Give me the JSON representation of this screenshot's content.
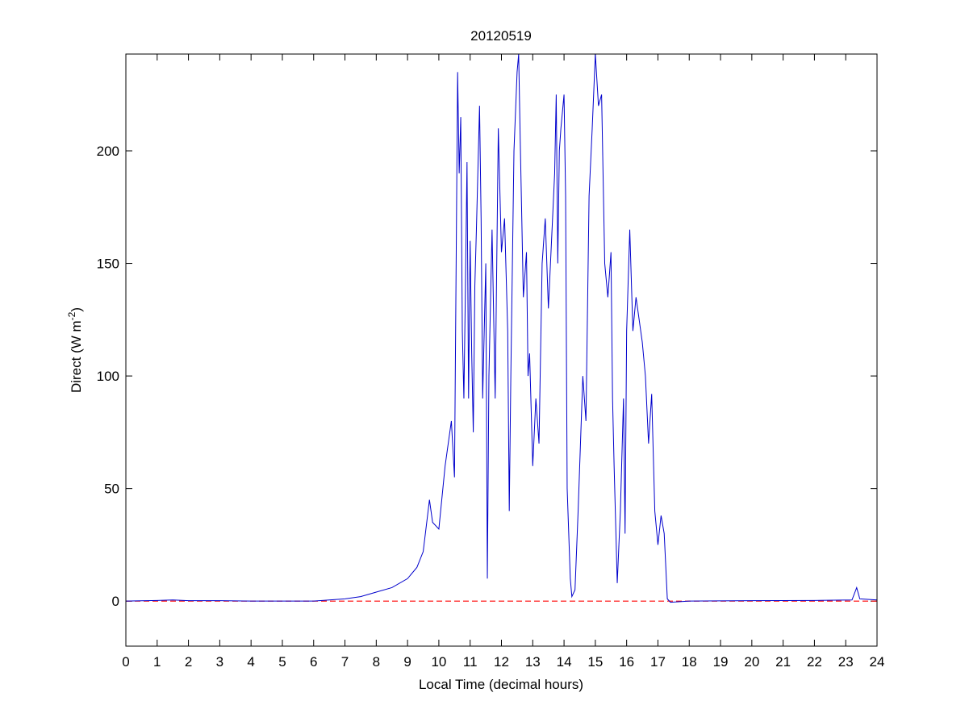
{
  "chart_data": {
    "type": "line",
    "title": "20120519",
    "xlabel": "Local Time (decimal hours)",
    "ylabel": [
      "Direct (W m",
      "-2",
      ")"
    ],
    "xlim": [
      0,
      24
    ],
    "ylim": [
      -20,
      243
    ],
    "xticks": [
      0,
      1,
      2,
      3,
      4,
      5,
      6,
      7,
      8,
      9,
      10,
      11,
      12,
      13,
      14,
      15,
      16,
      17,
      18,
      19,
      20,
      21,
      22,
      23,
      24
    ],
    "yticks": [
      0,
      50,
      100,
      150,
      200
    ],
    "reference_line": {
      "value": 0,
      "color": "#ff0000",
      "style": "dashed"
    },
    "series": [
      {
        "color": "#0000cc",
        "x": [
          0,
          1,
          1.5,
          2,
          3,
          4,
          5,
          6,
          6.5,
          7,
          7.5,
          8,
          8.5,
          9,
          9.3,
          9.5,
          9.7,
          9.8,
          10,
          10.2,
          10.4,
          10.5,
          10.6,
          10.65,
          10.7,
          10.75,
          10.8,
          10.85,
          10.9,
          10.95,
          11,
          11.05,
          11.1,
          11.15,
          11.2,
          11.3,
          11.35,
          11.4,
          11.5,
          11.55,
          11.6,
          11.7,
          11.8,
          11.9,
          12,
          12.1,
          12.2,
          12.25,
          12.3,
          12.4,
          12.5,
          12.55,
          12.6,
          12.7,
          12.8,
          12.85,
          12.9,
          13,
          13.1,
          13.2,
          13.3,
          13.4,
          13.5,
          13.6,
          13.7,
          13.75,
          13.8,
          13.85,
          13.9,
          14,
          14.05,
          14.1,
          14.2,
          14.25,
          14.35,
          14.45,
          14.6,
          14.7,
          14.8,
          14.9,
          15,
          15.1,
          15.2,
          15.3,
          15.4,
          15.5,
          15.55,
          15.6,
          15.7,
          15.8,
          15.9,
          15.95,
          16,
          16.1,
          16.2,
          16.3,
          16.4,
          16.5,
          16.6,
          16.7,
          16.8,
          16.9,
          17,
          17.1,
          17.2,
          17.3,
          17.4,
          18,
          20,
          22,
          23.2,
          23.35,
          23.45,
          24
        ],
        "values": [
          0,
          0.3,
          0.5,
          0.2,
          0.2,
          0,
          0,
          0,
          0.5,
          1,
          2,
          4,
          6,
          10,
          15,
          22,
          45,
          35,
          32,
          60,
          80,
          55,
          235,
          190,
          215,
          120,
          90,
          140,
          195,
          90,
          160,
          110,
          75,
          140,
          165,
          220,
          170,
          90,
          150,
          10,
          100,
          165,
          90,
          210,
          155,
          170,
          120,
          40,
          100,
          200,
          235,
          243,
          205,
          135,
          155,
          100,
          110,
          60,
          90,
          70,
          150,
          170,
          130,
          160,
          190,
          225,
          150,
          200,
          210,
          225,
          180,
          50,
          10,
          2,
          5,
          40,
          100,
          80,
          180,
          210,
          243,
          220,
          225,
          150,
          135,
          155,
          90,
          60,
          8,
          40,
          90,
          30,
          120,
          165,
          120,
          135,
          125,
          115,
          100,
          70,
          92,
          40,
          25,
          38,
          30,
          1,
          -0.5,
          0,
          0.2,
          0.3,
          0.5,
          6,
          1,
          0.5
        ]
      }
    ]
  }
}
